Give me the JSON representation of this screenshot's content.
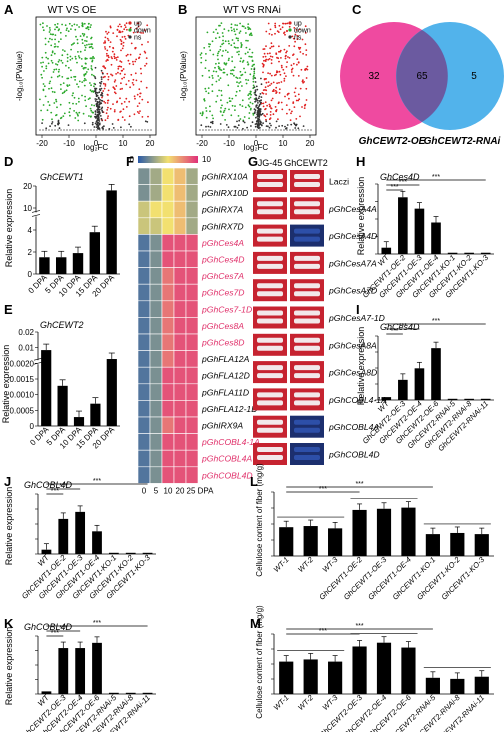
{
  "volcano": [
    {
      "label": "A",
      "title": "WT VS OE",
      "xlabel": "log₂FC",
      "ylabel": "-log₁₀(PValue)",
      "xticks": [
        "-20",
        "-10",
        "0",
        "10",
        "20"
      ],
      "legend": [
        "up",
        "down",
        "ns"
      ],
      "colors": {
        "up": "#e02020",
        "down": "#2aa82a",
        "ns": "#333333"
      }
    },
    {
      "label": "B",
      "title": "WT VS RNAi",
      "xlabel": "log₂FC",
      "ylabel": "-log₁₀(PValue)",
      "xticks": [
        "-20",
        "-10",
        "0",
        "10",
        "20"
      ],
      "legend": [
        "up",
        "down",
        "ns"
      ],
      "colors": {
        "up": "#e02020",
        "down": "#2aa82a",
        "ns": "#333333"
      }
    }
  ],
  "venn": {
    "label": "C",
    "left_only": "32",
    "overlap": "65",
    "right_only": "5",
    "left_name": "GhCEWT2-OE",
    "right_name": "GhCEWT2-RNAi",
    "left_color": "#ef4aa0",
    "right_color": "#3aa9e8"
  },
  "panelD": {
    "label": "D",
    "gene": "GhCEWT1",
    "ylabel": "Relative expression",
    "yticks": [
      "0",
      "2",
      "4",
      "10",
      "20"
    ],
    "categories": [
      "0 DPA",
      "5 DPA",
      "10 DPA",
      "15 DPA",
      "20 DPA"
    ],
    "values": [
      0.2,
      0.2,
      0.25,
      0.5,
      1.0
    ]
  },
  "panelE": {
    "label": "E",
    "gene": "GhCEWT2",
    "ylabel": "Relative expression",
    "yticks": [
      "0",
      "0.0005",
      "0.0010",
      "0.0015",
      "0.0020",
      "0.01",
      "0.02"
    ],
    "categories": [
      "0 DPA",
      "5 DPA",
      "10 DPA",
      "15 DPA",
      "20 DPA"
    ],
    "values": [
      0.85,
      0.45,
      0.1,
      0.25,
      0.75
    ]
  },
  "heatmap": {
    "label": "F",
    "scale_min": "0",
    "scale_max": "10",
    "xticks": [
      "0",
      "5",
      "10",
      "20",
      "25 DPA"
    ],
    "rows": [
      {
        "name": "pGhIRX10A",
        "red": false
      },
      {
        "name": "pGhIRX10D",
        "red": false
      },
      {
        "name": "pGhIRX7A",
        "red": false
      },
      {
        "name": "pGhIRX7D",
        "red": false
      },
      {
        "name": "pGhCes4A",
        "red": true
      },
      {
        "name": "pGhCes4D",
        "red": true
      },
      {
        "name": "pGhCes7A",
        "red": true
      },
      {
        "name": "pGhCes7D",
        "red": true
      },
      {
        "name": "pGhCes7-1D",
        "red": true
      },
      {
        "name": "pGhCes8A",
        "red": true
      },
      {
        "name": "pGhCes8D",
        "red": true
      },
      {
        "name": "pGhFLA12A",
        "red": false
      },
      {
        "name": "pGhFLA12D",
        "red": false
      },
      {
        "name": "pGhFLA11D",
        "red": false
      },
      {
        "name": "pGhFLA12-1D",
        "red": false
      },
      {
        "name": "pGhIRX9A",
        "red": false
      },
      {
        "name": "pGhCOBL4-1A",
        "red": true
      },
      {
        "name": "pGhCOBL4A",
        "red": true
      },
      {
        "name": "pGhCOBL4D",
        "red": true
      }
    ],
    "values": [
      [
        2,
        3,
        5,
        6,
        3
      ],
      [
        2,
        3,
        5,
        6,
        3
      ],
      [
        4,
        5,
        5,
        6,
        3
      ],
      [
        4,
        4,
        5,
        6,
        3
      ],
      [
        1,
        2,
        9,
        9,
        9
      ],
      [
        1,
        2,
        9,
        9,
        9
      ],
      [
        1,
        2,
        8,
        9,
        9
      ],
      [
        1,
        2,
        8,
        9,
        9
      ],
      [
        1,
        2,
        8,
        9,
        9
      ],
      [
        1,
        2,
        8,
        9,
        9
      ],
      [
        1,
        2,
        8,
        9,
        9
      ],
      [
        1,
        2,
        8,
        9,
        9
      ],
      [
        1,
        2,
        9,
        9,
        9
      ],
      [
        1,
        2,
        9,
        9,
        9
      ],
      [
        1,
        2,
        9,
        9,
        9
      ],
      [
        1,
        2,
        8,
        9,
        9
      ],
      [
        1,
        2,
        9,
        9,
        9
      ],
      [
        1,
        2,
        9,
        9,
        9
      ],
      [
        1,
        2,
        9,
        9,
        9
      ]
    ]
  },
  "panelG": {
    "label": "G",
    "col1": "JG-45",
    "col2": "GhCEWT2",
    "rows": [
      "Laczi",
      "pGhCesA4A",
      "pGhCesA4D",
      "pGhCesA7A",
      "pGhCesA7D",
      "pGhCesA7-1D",
      "pGhCesA8A",
      "pGhCesA8D",
      "pGhCOBL4-1A",
      "pGhCOBL4A",
      "pGhCOBL4D"
    ],
    "blue_rows": [
      2,
      9,
      10
    ]
  },
  "panelH": {
    "label": "H",
    "gene": "GhCes4D",
    "ylabel": "Relative expression",
    "categories": [
      "WT",
      "GhCEWT1-OE-2",
      "GhCEWT1-OE-3",
      "GhCEWT1-OE-4",
      "GhCEWT1-KO-1",
      "GhCEWT1-KO-2",
      "GhCEWT1-KO-3"
    ],
    "values": [
      0.1,
      0.9,
      0.72,
      0.5,
      0.02,
      0.02,
      0.02
    ],
    "sig": "***"
  },
  "panelI": {
    "label": "I",
    "gene": "GhCes4D",
    "ylabel": "Relative expression",
    "categories": [
      "WT",
      "GhCEWT2-OE-3",
      "GhCEWT2-OE-4",
      "GhCEWT2-OE-6",
      "GhCEWT2-RNAi-5",
      "GhCEWT2-RNAi-8",
      "GhCEWT2-RNAi-11"
    ],
    "values": [
      0.05,
      0.35,
      0.55,
      0.9,
      0.02,
      0.02,
      0.02
    ],
    "sig": "***"
  },
  "panelJ": {
    "label": "J",
    "gene": "GhCOBL4D",
    "ylabel": "Relative expression",
    "categories": [
      "WT",
      "GhCEWT1-OE-2",
      "GhCEWT1-OE-3",
      "GhCEWT1-OE-4",
      "GhCEWT1-KO-1",
      "GhCEWT1-KO-2",
      "GhCEWT1-KO-3"
    ],
    "values": [
      0.08,
      0.65,
      0.78,
      0.42,
      0.02,
      0.02,
      0.02
    ],
    "sig": "***"
  },
  "panelK": {
    "label": "K",
    "gene": "GhCOBL4D",
    "ylabel": "Relative expression",
    "categories": [
      "WT",
      "GhCEWT2-OE-3",
      "GhCEWT2-OE-4",
      "GhCEWT2-OE-6",
      "GhCEWT2-RNAi-5",
      "GhCEWT2-RNAi-8",
      "GhCEWT2-RNAi-11"
    ],
    "values": [
      0.05,
      0.88,
      0.88,
      0.98,
      0.02,
      0.02,
      0.02
    ],
    "sig": "***"
  },
  "panelL": {
    "label": "L",
    "ylabel": "Cellulose content of fiber (mg/g)",
    "categories": [
      "WT-1",
      "WT-2",
      "WT-3",
      "GhCEWT1-OE-2",
      "GhCEWT1-OE-3",
      "GhCEWT1-OE-4",
      "GhCEWT1-KO-1",
      "GhCEWT1-KO-2",
      "GhCEWT1-KO-3"
    ],
    "values": [
      0.5,
      0.52,
      0.48,
      0.8,
      0.82,
      0.84,
      0.38,
      0.4,
      0.38
    ],
    "sig": "***"
  },
  "panelM": {
    "label": "M",
    "ylabel": "Cellulose content of fiber (mg/g)",
    "categories": [
      "WT-1",
      "WT-2",
      "WT-3",
      "GhCEWT2-OE-3",
      "GhCEWT2-OE-4",
      "GhCEWT2-OE-6",
      "GhCEWT2-RNAi-5",
      "GhCEWT2-RNAi-8",
      "GhCEWT2-RNAi-11"
    ],
    "values": [
      0.6,
      0.64,
      0.6,
      0.88,
      0.95,
      0.86,
      0.3,
      0.28,
      0.32
    ],
    "sig": "***"
  }
}
